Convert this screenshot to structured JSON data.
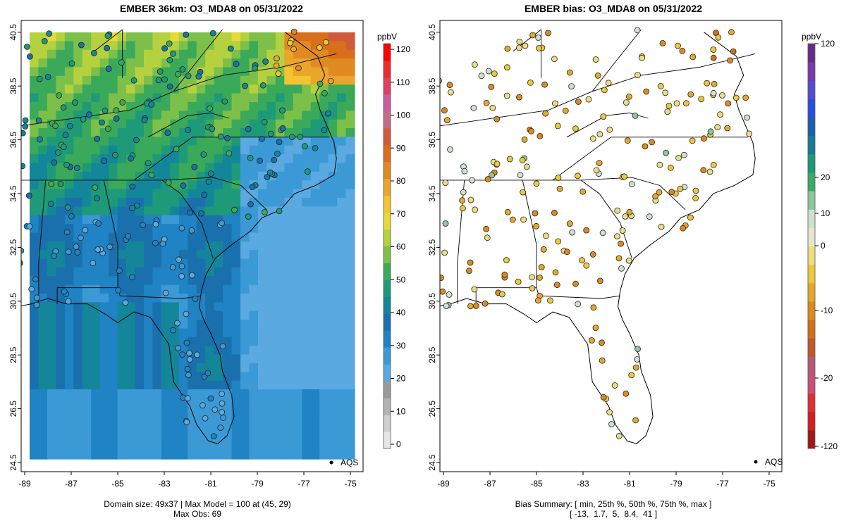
{
  "panels": [
    {
      "id": "model",
      "title": "EMBER 36km: O3_MDA8 on 05/31/2022",
      "footer_line1": "Domain size: 49x37 | Max Model = 100 at (45, 29)",
      "footer_line2": "Max Obs: 69",
      "legend_unit": "ppbV",
      "legend_ticks": [
        "0",
        "10",
        "20",
        "30",
        "40",
        "50",
        "60",
        "70",
        "80",
        "90",
        "100",
        "110",
        "120"
      ],
      "legend_colors": [
        "#e6e6e6",
        "#cfcfcf",
        "#b3b3b3",
        "#9a9a9a",
        "#5aa9e0",
        "#3b9ad6",
        "#1f83c4",
        "#1a70ad",
        "#14869a",
        "#1e9a78",
        "#3aaa5a",
        "#7cc04a",
        "#b6d13f",
        "#e6d93a",
        "#f2c531",
        "#eba52a",
        "#e08a22",
        "#d96f1a",
        "#d05a3c",
        "#c76a8a",
        "#d05ca0",
        "#e04060",
        "#ee2a2a",
        "#ff0000"
      ],
      "station_label": "AQS"
    },
    {
      "id": "bias",
      "title": "EMBER bias: O3_MDA8 on 05/31/2022",
      "footer_line1": "Bias Summary: [ min, 25th %, 50th %, 75th %, max ]",
      "footer_line2": "[ -13,  1.7,  5,  8.4,  41 ]",
      "legend_unit": "ppbV",
      "legend_ticks": [
        "120",
        "20",
        "10",
        "0",
        "-10",
        "-20",
        "-120"
      ],
      "legend_colors": [
        "#6a2a8a",
        "#7a3aa8",
        "#5a4ad0",
        "#2a4fe0",
        "#1a5fb0",
        "#1a7a9a",
        "#1a9a7a",
        "#3aaa6a",
        "#8ac89a",
        "#cfe0cf",
        "#e6e6d0",
        "#eedc80",
        "#eec83a",
        "#e6a82a",
        "#dc8a1e",
        "#d07018",
        "#c05a28",
        "#b85878",
        "#c8507a",
        "#e03030",
        "#d02020",
        "#a01818"
      ],
      "station_label": "AQS"
    }
  ],
  "axes": {
    "x_ticks": [
      "-89",
      "-87",
      "-85",
      "-83",
      "-81",
      "-79",
      "-77",
      "-75"
    ],
    "y_ticks": [
      "24.5",
      "26.5",
      "28.5",
      "30.5",
      "32.5",
      "34.5",
      "36.5",
      "38.5",
      "40.5"
    ]
  }
}
